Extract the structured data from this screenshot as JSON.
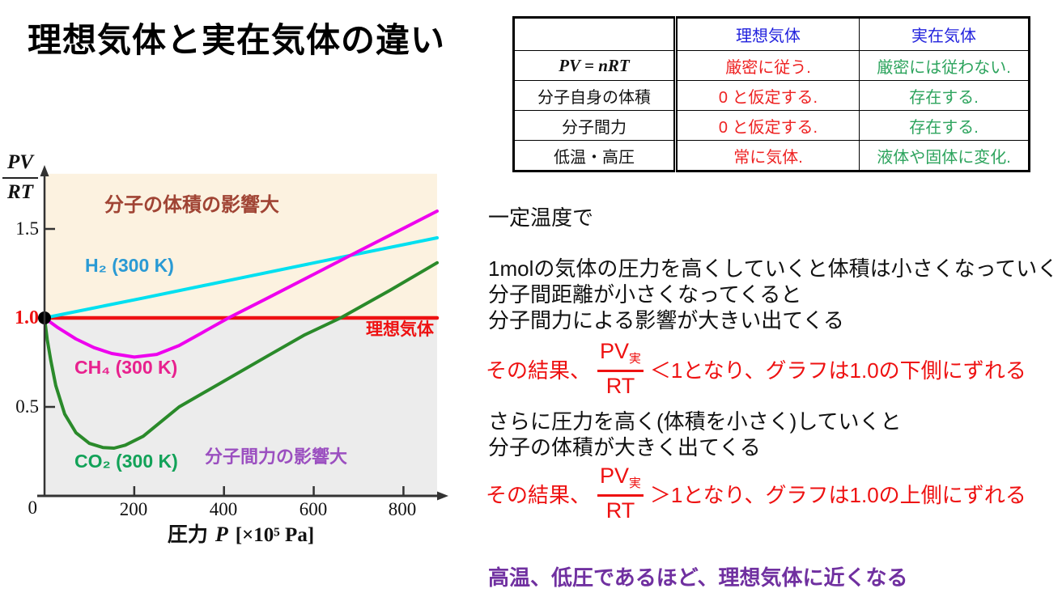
{
  "slide": {
    "title": "理想気体と実在気体の違い"
  },
  "table": {
    "header": [
      "",
      "理想気体",
      "実在気体"
    ],
    "rows": [
      [
        "PV = nRT",
        "厳密に従う.",
        "厳密には従わない."
      ],
      [
        "分子自身の体積",
        "0 と仮定する.",
        "存在する."
      ],
      [
        "分子間力",
        "0 と仮定する.",
        "存在する."
      ],
      [
        "低温・高圧",
        "常に気体.",
        "液体や固体に変化."
      ]
    ],
    "colors": {
      "header": "#2222dd",
      "ideal_column": "#ee2222",
      "real_column": "#2ea45e"
    }
  },
  "chart_data": {
    "type": "line",
    "xlabel_prefix": "圧力",
    "xlabel_var": "P",
    "xlabel_unit": "[×10⁵ Pa]",
    "ylabel_num": "PV",
    "ylabel_den": "RT",
    "xlim": [
      0,
      875
    ],
    "ylim": [
      0,
      1.81
    ],
    "grid": false,
    "xticks": [
      "200",
      "400",
      "600",
      "800"
    ],
    "ytick_labels": {
      "y15": "1.5",
      "y10": "1.0",
      "y05": "0.5",
      "y0": "0"
    },
    "ytick_marks": [
      1.5,
      0.5
    ],
    "regions": [
      {
        "label": "分子の体積の影響大",
        "y_range": [
          1.0,
          1.81
        ],
        "bg": "#fcf2e0",
        "label_color": "#a04434"
      },
      {
        "label": "分子間力の影響大",
        "y_range": [
          0,
          1.0
        ],
        "bg": "#ececec",
        "label_color": "#9b4fc0"
      }
    ],
    "series": [
      {
        "name": "理想気体",
        "color": "#ee1111",
        "label_color": "#ee1111",
        "width": 4.5,
        "points": [
          [
            0,
            1.0
          ],
          [
            875,
            1.0
          ]
        ]
      },
      {
        "name": "H₂ (300 K)",
        "color": "#00e0f0",
        "label_color": "#2a9ad4",
        "width": 4,
        "points": [
          [
            0,
            1.0
          ],
          [
            220,
            1.112
          ],
          [
            440,
            1.226
          ],
          [
            660,
            1.34
          ],
          [
            875,
            1.45
          ]
        ]
      },
      {
        "name": "CH₄ (300 K)",
        "color": "#ee00ee",
        "label_color": "#e8218e",
        "width": 4,
        "points": [
          [
            0,
            1.0
          ],
          [
            30,
            0.945
          ],
          [
            70,
            0.882
          ],
          [
            110,
            0.833
          ],
          [
            150,
            0.8
          ],
          [
            200,
            0.78
          ],
          [
            250,
            0.795
          ],
          [
            300,
            0.845
          ],
          [
            350,
            0.915
          ],
          [
            410,
            1.0
          ],
          [
            500,
            1.115
          ],
          [
            600,
            1.245
          ],
          [
            700,
            1.375
          ],
          [
            800,
            1.503
          ],
          [
            875,
            1.6
          ]
        ]
      },
      {
        "name": "CO₂ (300 K)",
        "color": "#2a8a2a",
        "label_color": "#12a258",
        "width": 4,
        "points": [
          [
            0,
            1.0
          ],
          [
            6,
            0.88
          ],
          [
            14,
            0.76
          ],
          [
            25,
            0.62
          ],
          [
            45,
            0.46
          ],
          [
            70,
            0.355
          ],
          [
            100,
            0.295
          ],
          [
            130,
            0.272
          ],
          [
            155,
            0.268
          ],
          [
            180,
            0.285
          ],
          [
            220,
            0.335
          ],
          [
            300,
            0.5
          ],
          [
            400,
            0.645
          ],
          [
            500,
            0.79
          ],
          [
            580,
            0.905
          ],
          [
            660,
            1.0
          ],
          [
            770,
            1.155
          ],
          [
            875,
            1.31
          ]
        ]
      }
    ],
    "origin_marker": {
      "x": 0,
      "y": 1.0
    }
  },
  "notes": {
    "line1": "一定温度で",
    "para1": [
      "1molの気体の圧力を高くしていくと体積は小さくなっていく",
      "分子間距離が小さくなってくると",
      "分子間力による影響が大きい出てくる"
    ],
    "result1": {
      "prefix": "その結果、",
      "frac_num": "PV",
      "frac_sub": "実",
      "frac_den": "RT",
      "rest": "＜1となり、グラフは1.0の下側にずれる"
    },
    "para2": [
      "さらに圧力を高く(体積を小さく)していくと",
      "分子の体積が大きく出てくる"
    ],
    "result2": {
      "prefix": "その結果、",
      "frac_num": "PV",
      "frac_sub": "実",
      "frac_den": "RT",
      "rest": "＞1となり、グラフは1.0の上側にずれる"
    },
    "conclusion": "高温、低圧であるほど、理想気体に近くなる",
    "red": "#ee1111",
    "purple": "#7030a0"
  }
}
